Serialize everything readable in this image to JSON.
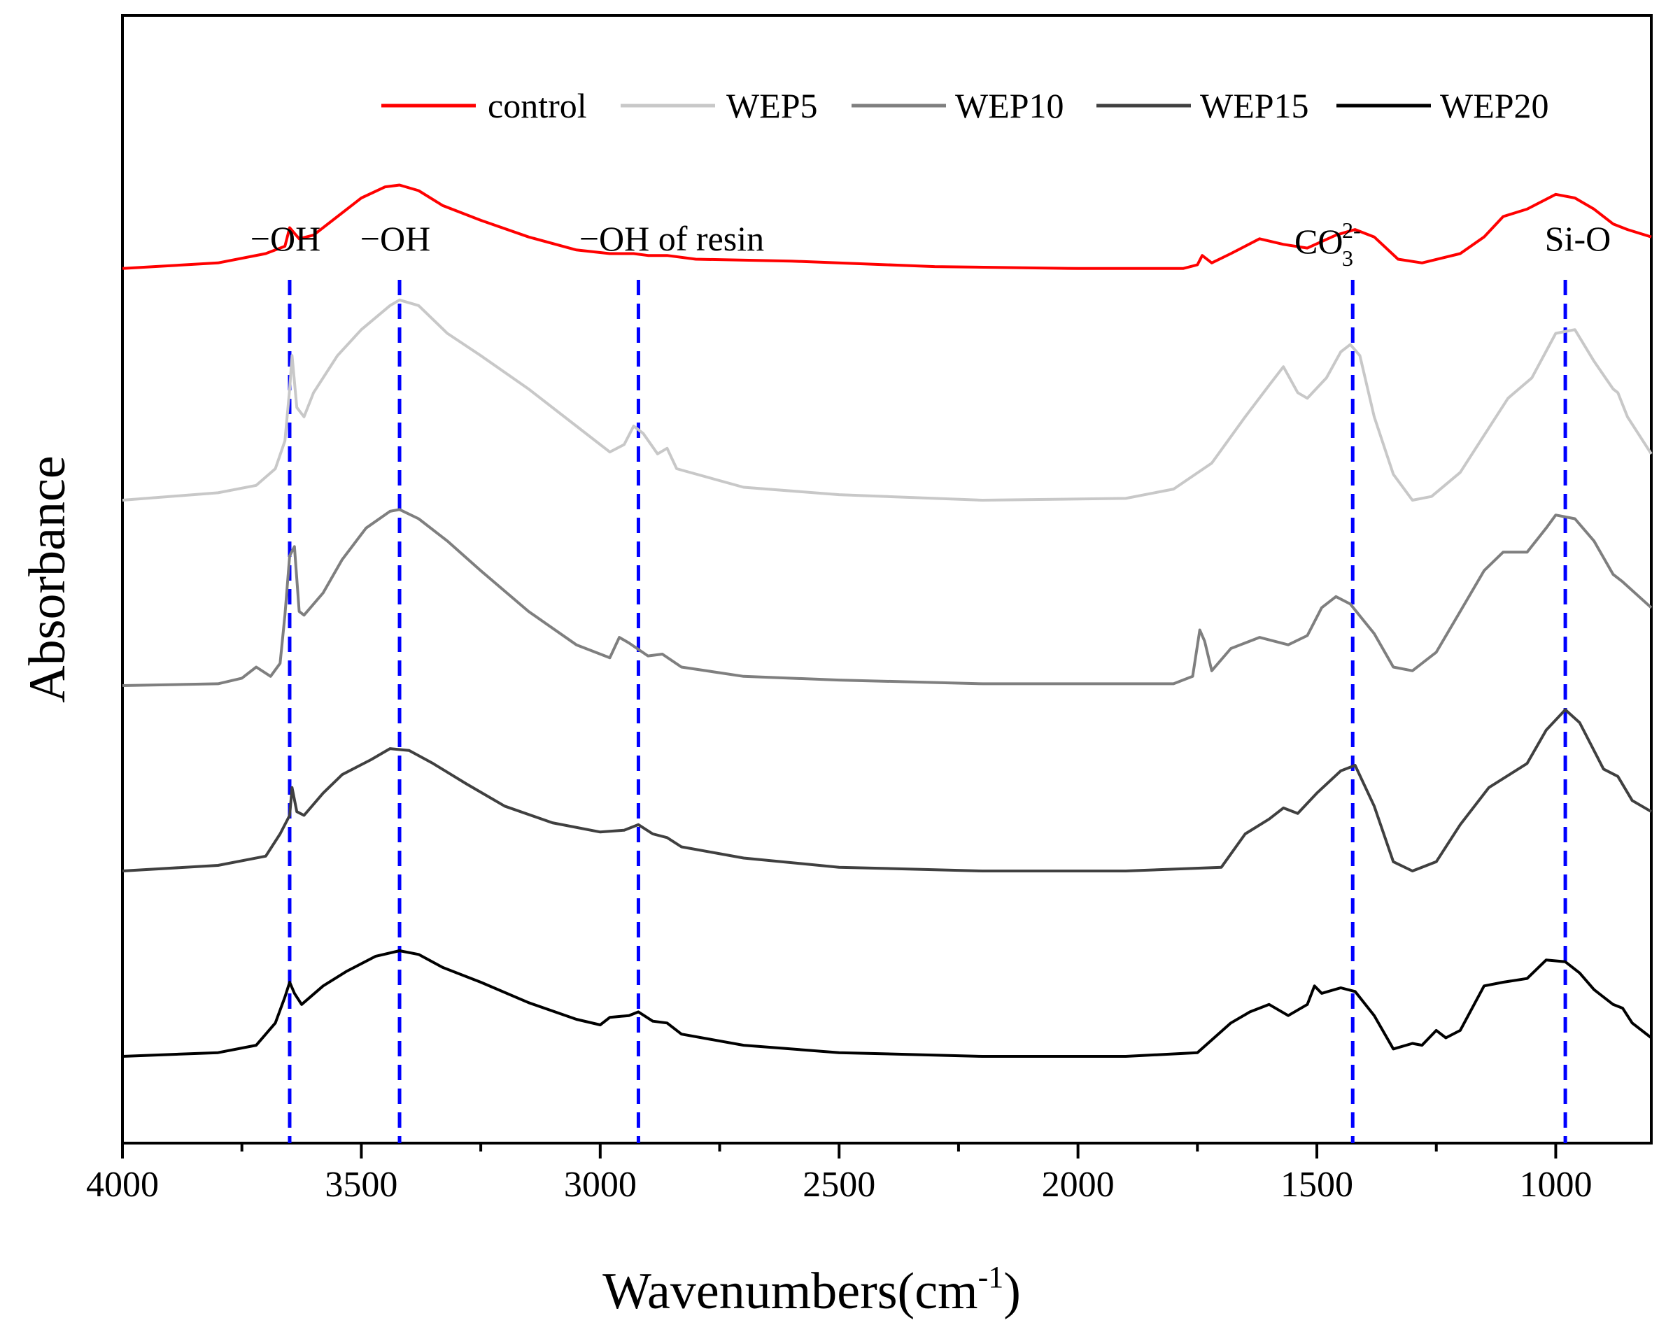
{
  "chart_data": {
    "type": "line",
    "xlabel": "Wavenumbers(cm",
    "xlabel_unit_sup": "-1",
    "xlabel_close": ")",
    "ylabel": "Absorbance",
    "xlim": [
      4000,
      800
    ],
    "x_ticks": [
      4000,
      3500,
      3000,
      2500,
      2000,
      1500,
      1000
    ],
    "x_tick_labels": [
      "4000",
      "3500",
      "3000",
      "2500",
      "2000",
      "1500",
      "1000"
    ],
    "y_tick_labels": false,
    "legend_position": "top",
    "series": [
      {
        "name": "control",
        "color": "#ff0000",
        "offset": 4.25,
        "points": [
          [
            4000,
            0.0
          ],
          [
            3800,
            0.03
          ],
          [
            3700,
            0.08
          ],
          [
            3660,
            0.12
          ],
          [
            3650,
            0.22
          ],
          [
            3630,
            0.16
          ],
          [
            3600,
            0.18
          ],
          [
            3550,
            0.28
          ],
          [
            3500,
            0.38
          ],
          [
            3450,
            0.44
          ],
          [
            3420,
            0.45
          ],
          [
            3380,
            0.42
          ],
          [
            3330,
            0.34
          ],
          [
            3250,
            0.26
          ],
          [
            3150,
            0.17
          ],
          [
            3050,
            0.1
          ],
          [
            2980,
            0.08
          ],
          [
            2930,
            0.08
          ],
          [
            2900,
            0.07
          ],
          [
            2860,
            0.07
          ],
          [
            2800,
            0.05
          ],
          [
            2600,
            0.04
          ],
          [
            2300,
            0.01
          ],
          [
            2000,
            0.0
          ],
          [
            1780,
            0.0
          ],
          [
            1750,
            0.02
          ],
          [
            1740,
            0.07
          ],
          [
            1720,
            0.03
          ],
          [
            1680,
            0.08
          ],
          [
            1620,
            0.16
          ],
          [
            1570,
            0.13
          ],
          [
            1520,
            0.11
          ],
          [
            1460,
            0.18
          ],
          [
            1420,
            0.21
          ],
          [
            1380,
            0.17
          ],
          [
            1330,
            0.05
          ],
          [
            1280,
            0.03
          ],
          [
            1200,
            0.08
          ],
          [
            1150,
            0.17
          ],
          [
            1110,
            0.28
          ],
          [
            1060,
            0.32
          ],
          [
            1000,
            0.4
          ],
          [
            960,
            0.38
          ],
          [
            920,
            0.32
          ],
          [
            880,
            0.24
          ],
          [
            850,
            0.21
          ],
          [
            800,
            0.17
          ]
        ]
      },
      {
        "name": "WEP5",
        "color": "#c8c8c8",
        "offset": 3.0,
        "points": [
          [
            4000,
            0.0
          ],
          [
            3800,
            0.04
          ],
          [
            3720,
            0.08
          ],
          [
            3680,
            0.17
          ],
          [
            3660,
            0.32
          ],
          [
            3650,
            0.6
          ],
          [
            3645,
            0.78
          ],
          [
            3635,
            0.5
          ],
          [
            3620,
            0.45
          ],
          [
            3600,
            0.58
          ],
          [
            3550,
            0.78
          ],
          [
            3500,
            0.92
          ],
          [
            3440,
            1.05
          ],
          [
            3420,
            1.08
          ],
          [
            3380,
            1.05
          ],
          [
            3320,
            0.9
          ],
          [
            3250,
            0.78
          ],
          [
            3150,
            0.6
          ],
          [
            3050,
            0.4
          ],
          [
            2980,
            0.26
          ],
          [
            2950,
            0.3
          ],
          [
            2930,
            0.4
          ],
          [
            2910,
            0.36
          ],
          [
            2880,
            0.25
          ],
          [
            2860,
            0.28
          ],
          [
            2840,
            0.17
          ],
          [
            2700,
            0.07
          ],
          [
            2500,
            0.03
          ],
          [
            2200,
            0.0
          ],
          [
            1900,
            0.01
          ],
          [
            1800,
            0.06
          ],
          [
            1720,
            0.2
          ],
          [
            1650,
            0.45
          ],
          [
            1600,
            0.62
          ],
          [
            1570,
            0.72
          ],
          [
            1540,
            0.58
          ],
          [
            1520,
            0.55
          ],
          [
            1480,
            0.66
          ],
          [
            1450,
            0.8
          ],
          [
            1430,
            0.84
          ],
          [
            1410,
            0.78
          ],
          [
            1380,
            0.45
          ],
          [
            1340,
            0.14
          ],
          [
            1300,
            0.0
          ],
          [
            1260,
            0.02
          ],
          [
            1200,
            0.15
          ],
          [
            1150,
            0.35
          ],
          [
            1100,
            0.55
          ],
          [
            1050,
            0.66
          ],
          [
            1000,
            0.9
          ],
          [
            960,
            0.92
          ],
          [
            920,
            0.75
          ],
          [
            880,
            0.6
          ],
          [
            870,
            0.58
          ],
          [
            850,
            0.45
          ],
          [
            800,
            0.25
          ]
        ]
      },
      {
        "name": "WEP10",
        "color": "#7f7f7f",
        "offset": 2.0,
        "points": [
          [
            4000,
            0.0
          ],
          [
            3800,
            0.01
          ],
          [
            3750,
            0.04
          ],
          [
            3720,
            0.1
          ],
          [
            3690,
            0.05
          ],
          [
            3670,
            0.12
          ],
          [
            3660,
            0.38
          ],
          [
            3650,
            0.7
          ],
          [
            3640,
            0.75
          ],
          [
            3630,
            0.4
          ],
          [
            3620,
            0.38
          ],
          [
            3580,
            0.5
          ],
          [
            3540,
            0.68
          ],
          [
            3490,
            0.85
          ],
          [
            3440,
            0.94
          ],
          [
            3420,
            0.95
          ],
          [
            3380,
            0.9
          ],
          [
            3320,
            0.78
          ],
          [
            3250,
            0.62
          ],
          [
            3150,
            0.4
          ],
          [
            3050,
            0.22
          ],
          [
            2980,
            0.15
          ],
          [
            2960,
            0.26
          ],
          [
            2940,
            0.23
          ],
          [
            2900,
            0.16
          ],
          [
            2870,
            0.17
          ],
          [
            2830,
            0.1
          ],
          [
            2700,
            0.05
          ],
          [
            2500,
            0.03
          ],
          [
            2200,
            0.01
          ],
          [
            2000,
            0.01
          ],
          [
            1800,
            0.01
          ],
          [
            1760,
            0.05
          ],
          [
            1745,
            0.3
          ],
          [
            1735,
            0.24
          ],
          [
            1720,
            0.08
          ],
          [
            1680,
            0.2
          ],
          [
            1620,
            0.26
          ],
          [
            1560,
            0.22
          ],
          [
            1520,
            0.27
          ],
          [
            1490,
            0.42
          ],
          [
            1460,
            0.48
          ],
          [
            1430,
            0.44
          ],
          [
            1380,
            0.28
          ],
          [
            1340,
            0.1
          ],
          [
            1300,
            0.08
          ],
          [
            1250,
            0.18
          ],
          [
            1200,
            0.4
          ],
          [
            1150,
            0.62
          ],
          [
            1110,
            0.72
          ],
          [
            1060,
            0.72
          ],
          [
            1020,
            0.85
          ],
          [
            1000,
            0.92
          ],
          [
            960,
            0.9
          ],
          [
            920,
            0.78
          ],
          [
            880,
            0.6
          ],
          [
            860,
            0.56
          ],
          [
            800,
            0.42
          ]
        ]
      },
      {
        "name": "WEP15",
        "color": "#404040",
        "offset": 1.0,
        "points": [
          [
            4000,
            0.0
          ],
          [
            3800,
            0.03
          ],
          [
            3700,
            0.08
          ],
          [
            3670,
            0.2
          ],
          [
            3650,
            0.3
          ],
          [
            3645,
            0.45
          ],
          [
            3635,
            0.32
          ],
          [
            3620,
            0.3
          ],
          [
            3580,
            0.42
          ],
          [
            3540,
            0.52
          ],
          [
            3480,
            0.6
          ],
          [
            3440,
            0.66
          ],
          [
            3400,
            0.65
          ],
          [
            3350,
            0.58
          ],
          [
            3280,
            0.47
          ],
          [
            3200,
            0.35
          ],
          [
            3100,
            0.26
          ],
          [
            3000,
            0.21
          ],
          [
            2950,
            0.22
          ],
          [
            2920,
            0.25
          ],
          [
            2890,
            0.2
          ],
          [
            2860,
            0.18
          ],
          [
            2830,
            0.13
          ],
          [
            2700,
            0.07
          ],
          [
            2500,
            0.02
          ],
          [
            2200,
            0.0
          ],
          [
            1900,
            0.0
          ],
          [
            1700,
            0.02
          ],
          [
            1650,
            0.2
          ],
          [
            1600,
            0.28
          ],
          [
            1570,
            0.34
          ],
          [
            1540,
            0.31
          ],
          [
            1500,
            0.42
          ],
          [
            1450,
            0.54
          ],
          [
            1420,
            0.57
          ],
          [
            1380,
            0.35
          ],
          [
            1340,
            0.05
          ],
          [
            1300,
            0.0
          ],
          [
            1250,
            0.05
          ],
          [
            1200,
            0.25
          ],
          [
            1140,
            0.45
          ],
          [
            1060,
            0.58
          ],
          [
            1020,
            0.76
          ],
          [
            980,
            0.87
          ],
          [
            950,
            0.8
          ],
          [
            900,
            0.55
          ],
          [
            870,
            0.51
          ],
          [
            840,
            0.38
          ],
          [
            800,
            0.32
          ]
        ]
      },
      {
        "name": "WEP20",
        "color": "#000000",
        "offset": 0.0,
        "points": [
          [
            4000,
            0.0
          ],
          [
            3800,
            0.02
          ],
          [
            3720,
            0.06
          ],
          [
            3680,
            0.18
          ],
          [
            3660,
            0.32
          ],
          [
            3650,
            0.4
          ],
          [
            3640,
            0.34
          ],
          [
            3625,
            0.28
          ],
          [
            3580,
            0.38
          ],
          [
            3530,
            0.46
          ],
          [
            3470,
            0.54
          ],
          [
            3420,
            0.57
          ],
          [
            3380,
            0.55
          ],
          [
            3330,
            0.48
          ],
          [
            3250,
            0.4
          ],
          [
            3150,
            0.29
          ],
          [
            3050,
            0.2
          ],
          [
            3000,
            0.17
          ],
          [
            2980,
            0.21
          ],
          [
            2940,
            0.22
          ],
          [
            2920,
            0.24
          ],
          [
            2890,
            0.19
          ],
          [
            2860,
            0.18
          ],
          [
            2830,
            0.12
          ],
          [
            2700,
            0.06
          ],
          [
            2500,
            0.02
          ],
          [
            2200,
            0.0
          ],
          [
            1900,
            0.0
          ],
          [
            1750,
            0.02
          ],
          [
            1680,
            0.18
          ],
          [
            1640,
            0.24
          ],
          [
            1600,
            0.28
          ],
          [
            1560,
            0.22
          ],
          [
            1520,
            0.28
          ],
          [
            1505,
            0.38
          ],
          [
            1490,
            0.34
          ],
          [
            1450,
            0.37
          ],
          [
            1420,
            0.35
          ],
          [
            1380,
            0.22
          ],
          [
            1340,
            0.04
          ],
          [
            1300,
            0.07
          ],
          [
            1280,
            0.06
          ],
          [
            1250,
            0.14
          ],
          [
            1230,
            0.1
          ],
          [
            1200,
            0.14
          ],
          [
            1150,
            0.38
          ],
          [
            1110,
            0.4
          ],
          [
            1060,
            0.42
          ],
          [
            1020,
            0.52
          ],
          [
            980,
            0.51
          ],
          [
            950,
            0.45
          ],
          [
            920,
            0.36
          ],
          [
            880,
            0.28
          ],
          [
            860,
            0.26
          ],
          [
            840,
            0.18
          ],
          [
            800,
            0.1
          ]
        ]
      }
    ],
    "annotations": [
      {
        "text": "−OH",
        "x": 3650
      },
      {
        "text": "−OH",
        "x": 3420
      },
      {
        "text": "−OH of resin",
        "x": 2920
      },
      {
        "text": "CO",
        "sub": "3",
        "sup": "2-",
        "x": 1425
      },
      {
        "text": "Si-O",
        "x": 980
      }
    ],
    "reference_line_color": "#0000ff"
  }
}
